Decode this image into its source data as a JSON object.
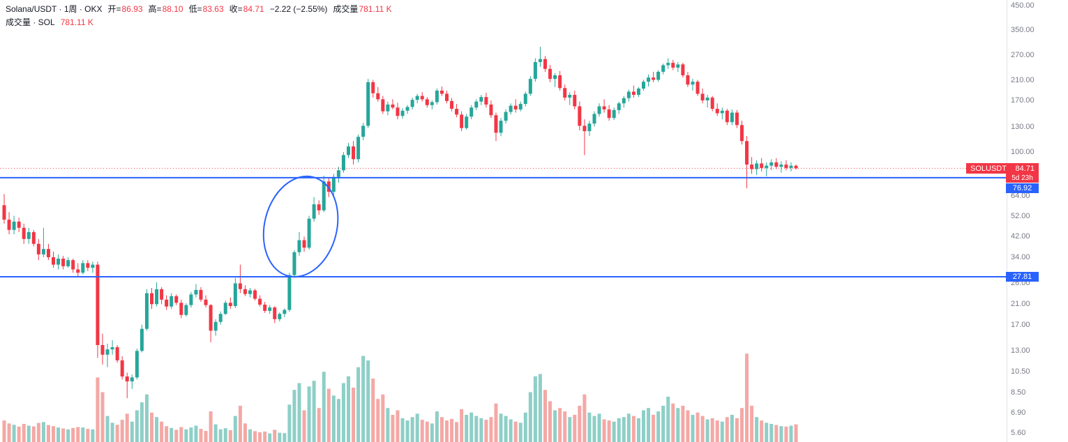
{
  "legend": {
    "row1": {
      "title": "Solana/USDT · 1周 · OKX",
      "open_label": "开=",
      "open_value": "86.93",
      "high_label": "高=",
      "high_value": "88.10",
      "low_label": "低=",
      "low_value": "83.63",
      "close_label": "收=",
      "close_value": "84.71",
      "change_value": "−2.22 (−2.55%)",
      "volume_label": "成交量",
      "volume_value": "781.11 K"
    },
    "row2": {
      "title": "成交量 · SOL",
      "value": "781.11 K"
    }
  },
  "price_axis": {
    "ticks": [
      {
        "label": "450.00",
        "value": 450
      },
      {
        "label": "350.00",
        "value": 350
      },
      {
        "label": "270.00",
        "value": 270
      },
      {
        "label": "210.00",
        "value": 210
      },
      {
        "label": "170.00",
        "value": 170
      },
      {
        "label": "130.00",
        "value": 130
      },
      {
        "label": "100.00",
        "value": 100
      },
      {
        "label": "64.00",
        "value": 64
      },
      {
        "label": "52.00",
        "value": 52
      },
      {
        "label": "42.00",
        "value": 42
      },
      {
        "label": "34.00",
        "value": 34
      },
      {
        "label": "26.00",
        "value": 26
      },
      {
        "label": "21.00",
        "value": 21
      },
      {
        "label": "17.00",
        "value": 17
      },
      {
        "label": "13.00",
        "value": 13
      },
      {
        "label": "10.50",
        "value": 10.5
      },
      {
        "label": "8.50",
        "value": 8.5
      },
      {
        "label": "6.90",
        "value": 6.9
      },
      {
        "label": "5.60",
        "value": 5.6
      }
    ],
    "last_price_label": {
      "symbol": "SOLUSDT",
      "price": "84.71",
      "countdown": "5d 23h"
    },
    "level_labels": [
      {
        "text": "76.92",
        "value": 76.92
      },
      {
        "text": "27.81",
        "value": 27.81
      }
    ]
  },
  "chart_data": {
    "type": "candlestick",
    "symbol": "Solana/USDT",
    "exchange": "OKX",
    "interval": "1周",
    "scale": "log",
    "price_axis_range": [
      5.6,
      450
    ],
    "ohlc_last": {
      "open": 86.93,
      "high": 88.1,
      "low": 83.63,
      "close": 84.71,
      "change": -2.22,
      "change_pct": -2.55,
      "volume_k": 781.11
    },
    "volume_unit": "K",
    "last_price_line": {
      "value": 84.71,
      "countdown": "5d 23h",
      "style": "dotted"
    },
    "price_levels": [
      {
        "value": 76.92,
        "color": "#2962ff"
      },
      {
        "value": 27.81,
        "color": "#2962ff"
      }
    ],
    "ellipse_annotation": {
      "index_start": 53.3,
      "index_end": 68,
      "price_top": 78.6,
      "price_bottom": 27.6,
      "rotation_deg": 14,
      "color": "#2962ff",
      "meaning": "circled breakout from 27.81 level toward 76.92 level"
    },
    "candles_format": [
      "open",
      "high",
      "low",
      "close",
      "volume_k"
    ],
    "candles": [
      [
        58,
        65,
        48,
        50,
        950
      ],
      [
        50,
        54,
        43,
        45,
        820
      ],
      [
        45,
        52,
        43,
        49,
        760
      ],
      [
        49,
        51,
        44,
        46,
        680
      ],
      [
        46,
        48,
        39,
        41,
        800
      ],
      [
        41,
        46,
        39,
        44,
        720
      ],
      [
        44,
        45,
        38,
        39,
        690
      ],
      [
        39,
        41,
        33,
        35,
        840
      ],
      [
        35,
        46,
        34,
        37,
        880
      ],
      [
        37,
        39,
        33,
        34,
        750
      ],
      [
        34,
        36,
        30.5,
        31.5,
        700
      ],
      [
        31.5,
        35,
        30,
        33.5,
        640
      ],
      [
        33.5,
        34.5,
        30,
        31,
        600
      ],
      [
        31,
        34,
        30.5,
        33,
        560
      ],
      [
        33,
        33.5,
        29,
        30,
        620
      ],
      [
        30,
        32,
        27.9,
        29,
        660
      ],
      [
        29,
        33,
        28.5,
        32,
        640
      ],
      [
        32,
        33,
        29.5,
        30.5,
        580
      ],
      [
        30.5,
        32.5,
        29,
        31.5,
        560
      ],
      [
        31.5,
        32.5,
        12.1,
        13.8,
        2850
      ],
      [
        13.8,
        15.5,
        11.3,
        12.5,
        2200
      ],
      [
        12.5,
        14,
        11,
        13.2,
        1150
      ],
      [
        13.2,
        14.5,
        12.5,
        13.5,
        850
      ],
      [
        13.5,
        13.8,
        11.5,
        11.8,
        760
      ],
      [
        11.8,
        12.3,
        9.7,
        10,
        980
      ],
      [
        10,
        10.4,
        8,
        9.5,
        1250
      ],
      [
        9.5,
        10.2,
        8.8,
        9.9,
        900
      ],
      [
        9.9,
        13.3,
        9.7,
        13,
        1400
      ],
      [
        13,
        17,
        12.8,
        16.3,
        1750
      ],
      [
        16.3,
        24.5,
        16,
        23.5,
        2100
      ],
      [
        23.5,
        24.8,
        20,
        21,
        1300
      ],
      [
        21,
        26.3,
        20.5,
        24.5,
        1100
      ],
      [
        24.5,
        25,
        21,
        22,
        900
      ],
      [
        22,
        23,
        19.8,
        20.5,
        700
      ],
      [
        20.5,
        23.5,
        20,
        22.8,
        620
      ],
      [
        22.8,
        23.2,
        20.8,
        21.3,
        540
      ],
      [
        21.3,
        22,
        18.2,
        18.8,
        660
      ],
      [
        18.8,
        21.2,
        18.5,
        20.8,
        560
      ],
      [
        20.8,
        23.8,
        20.3,
        23.2,
        640
      ],
      [
        23.2,
        25.8,
        22.5,
        24.3,
        720
      ],
      [
        24.3,
        25,
        21.5,
        22,
        580
      ],
      [
        22,
        23,
        20.3,
        20.8,
        490
      ],
      [
        20.8,
        21,
        14.2,
        16,
        1350
      ],
      [
        16,
        18,
        15.2,
        17.5,
        780
      ],
      [
        17.5,
        19.5,
        17,
        19,
        560
      ],
      [
        19,
        21.8,
        18.8,
        21.3,
        610
      ],
      [
        21.3,
        22.5,
        20,
        20.6,
        520
      ],
      [
        20.6,
        27.5,
        20.2,
        26,
        1150
      ],
      [
        26,
        31.5,
        23.5,
        24.5,
        1600
      ],
      [
        24.5,
        25.5,
        22.8,
        23.3,
        820
      ],
      [
        23.3,
        24.8,
        22.5,
        24.2,
        560
      ],
      [
        24.2,
        24.6,
        21.8,
        22.2,
        480
      ],
      [
        22.2,
        23,
        20.5,
        20.9,
        430
      ],
      [
        20.9,
        21.5,
        19.2,
        19.6,
        460
      ],
      [
        19.6,
        20.8,
        19,
        20.3,
        380
      ],
      [
        20.3,
        20.6,
        17.3,
        18,
        540
      ],
      [
        18,
        19.3,
        17.6,
        19,
        410
      ],
      [
        19,
        20.1,
        18.4,
        19.8,
        390
      ],
      [
        19.8,
        29,
        19.4,
        28.3,
        1650
      ],
      [
        28.3,
        36.5,
        27.5,
        35.8,
        2300
      ],
      [
        35.8,
        44,
        34.5,
        40.5,
        2600
      ],
      [
        40.5,
        42,
        36,
        37.5,
        1400
      ],
      [
        37.5,
        52,
        36.8,
        50.5,
        2450
      ],
      [
        50.5,
        63,
        49,
        58.5,
        2700
      ],
      [
        58.5,
        61,
        52.5,
        55,
        1500
      ],
      [
        55,
        78.5,
        54,
        74,
        3100
      ],
      [
        74,
        77,
        63,
        66.5,
        2350
      ],
      [
        66.5,
        80,
        64,
        77.5,
        2050
      ],
      [
        77.5,
        86,
        73,
        83,
        1900
      ],
      [
        83,
        100,
        81,
        97,
        2600
      ],
      [
        97,
        110,
        94,
        106,
        2900
      ],
      [
        106,
        112,
        88,
        93,
        2400
      ],
      [
        93,
        120,
        90,
        117,
        3300
      ],
      [
        117,
        135,
        113,
        131,
        3800
      ],
      [
        131,
        212,
        128,
        205,
        3600
      ],
      [
        205,
        210,
        175,
        183,
        2800
      ],
      [
        183,
        195,
        168,
        172,
        1900
      ],
      [
        172,
        178,
        148,
        152,
        2100
      ],
      [
        152,
        168,
        146,
        163,
        1500
      ],
      [
        163,
        172,
        155,
        158,
        1200
      ],
      [
        158,
        166,
        140,
        145,
        1400
      ],
      [
        145,
        157,
        141,
        153,
        1050
      ],
      [
        153,
        162,
        148,
        159,
        950
      ],
      [
        159,
        175,
        155,
        171,
        1100
      ],
      [
        171,
        182,
        165,
        178,
        1250
      ],
      [
        178,
        185,
        168,
        172,
        980
      ],
      [
        172,
        176,
        158,
        162,
        900
      ],
      [
        162,
        170,
        155,
        167,
        820
      ],
      [
        167,
        192,
        163,
        188,
        1350
      ],
      [
        188,
        196,
        178,
        182,
        1100
      ],
      [
        182,
        188,
        165,
        169,
        950
      ],
      [
        169,
        174,
        152,
        156,
        1020
      ],
      [
        156,
        164,
        143,
        147,
        880
      ],
      [
        147,
        152,
        124,
        128,
        1450
      ],
      [
        128,
        148,
        126,
        144,
        1200
      ],
      [
        144,
        162,
        140,
        158,
        1300
      ],
      [
        158,
        172,
        154,
        168,
        1150
      ],
      [
        168,
        180,
        162,
        176,
        1050
      ],
      [
        176,
        184,
        158,
        163,
        980
      ],
      [
        163,
        170,
        142,
        146,
        1100
      ],
      [
        146,
        150,
        112,
        122,
        1700
      ],
      [
        122,
        142,
        118,
        138,
        1250
      ],
      [
        138,
        155,
        134,
        151,
        1150
      ],
      [
        151,
        165,
        147,
        161,
        1000
      ],
      [
        161,
        172,
        150,
        155,
        900
      ],
      [
        155,
        168,
        152,
        164,
        850
      ],
      [
        164,
        186,
        160,
        182,
        1300
      ],
      [
        182,
        218,
        178,
        212,
        2200
      ],
      [
        212,
        262,
        206,
        252,
        2900
      ],
      [
        252,
        295,
        240,
        260,
        3000
      ],
      [
        260,
        268,
        228,
        235,
        2300
      ],
      [
        235,
        245,
        205,
        212,
        1800
      ],
      [
        212,
        225,
        195,
        220,
        1400
      ],
      [
        220,
        230,
        188,
        193,
        1500
      ],
      [
        193,
        200,
        170,
        175,
        1350
      ],
      [
        175,
        185,
        162,
        180,
        1100
      ],
      [
        180,
        188,
        155,
        160,
        1200
      ],
      [
        160,
        168,
        125,
        131,
        1600
      ],
      [
        131,
        140,
        97,
        124,
        2100
      ],
      [
        124,
        138,
        118,
        134,
        1300
      ],
      [
        134,
        152,
        130,
        148,
        1150
      ],
      [
        148,
        165,
        144,
        160,
        1250
      ],
      [
        160,
        172,
        150,
        155,
        1000
      ],
      [
        155,
        162,
        138,
        142,
        950
      ],
      [
        142,
        158,
        139,
        154,
        900
      ],
      [
        154,
        168,
        148,
        165,
        1050
      ],
      [
        165,
        178,
        158,
        174,
        1100
      ],
      [
        174,
        190,
        168,
        186,
        1250
      ],
      [
        186,
        198,
        175,
        180,
        1150
      ],
      [
        180,
        195,
        176,
        192,
        1050
      ],
      [
        192,
        210,
        188,
        206,
        1400
      ],
      [
        206,
        222,
        196,
        215,
        1500
      ],
      [
        215,
        228,
        205,
        210,
        1200
      ],
      [
        210,
        232,
        206,
        228,
        1350
      ],
      [
        228,
        248,
        222,
        244,
        1600
      ],
      [
        244,
        262,
        235,
        250,
        2000
      ],
      [
        250,
        258,
        232,
        238,
        1700
      ],
      [
        238,
        252,
        228,
        246,
        1500
      ],
      [
        246,
        250,
        215,
        220,
        1600
      ],
      [
        220,
        228,
        195,
        200,
        1400
      ],
      [
        200,
        212,
        188,
        206,
        1200
      ],
      [
        206,
        210,
        178,
        182,
        1300
      ],
      [
        182,
        192,
        165,
        170,
        1150
      ],
      [
        170,
        180,
        158,
        175,
        1000
      ],
      [
        175,
        178,
        152,
        156,
        1050
      ],
      [
        156,
        165,
        145,
        149,
        950
      ],
      [
        149,
        158,
        140,
        153,
        900
      ],
      [
        153,
        156,
        132,
        136,
        1100
      ],
      [
        136,
        155,
        132,
        150,
        1200
      ],
      [
        150,
        154,
        128,
        132,
        1050
      ],
      [
        132,
        138,
        108,
        112,
        1500
      ],
      [
        112,
        118,
        69,
        88,
        3900
      ],
      [
        88,
        95,
        80,
        84,
        1600
      ],
      [
        84,
        92,
        79,
        89,
        1100
      ],
      [
        89,
        94,
        82,
        85,
        950
      ],
      [
        85,
        90,
        78,
        87,
        850
      ],
      [
        87,
        93,
        83,
        90,
        800
      ],
      [
        90,
        94,
        84,
        86,
        750
      ],
      [
        86,
        91,
        81,
        88,
        700
      ],
      [
        88,
        92,
        83,
        85,
        680
      ],
      [
        85,
        90,
        82,
        87,
        720
      ],
      [
        86.93,
        88.1,
        83.63,
        84.71,
        781.11
      ]
    ]
  },
  "colors": {
    "up": "#26a69a",
    "down": "#f23645",
    "vol_up": "#8ecfc7",
    "vol_down": "#f4a8a5",
    "accent_blue": "#2962ff",
    "accent_red": "#f23645",
    "axis_text": "#787b86",
    "legend_text": "#131722",
    "background": "#ffffff"
  }
}
